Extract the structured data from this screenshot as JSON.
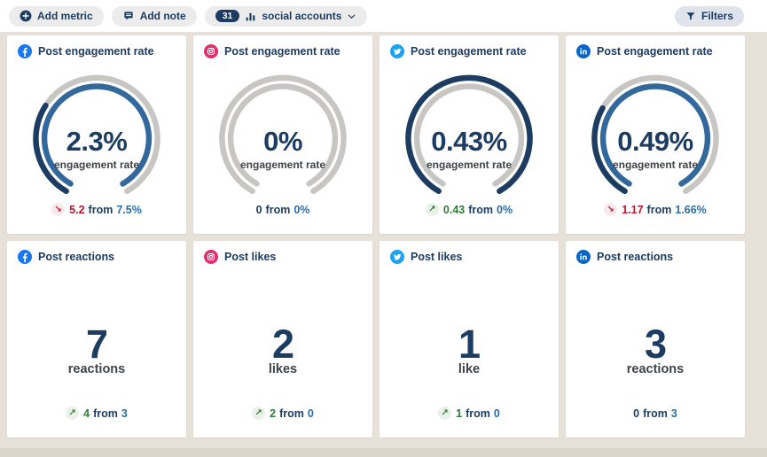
{
  "toolbar": {
    "add_metric_label": "Add metric",
    "add_note_label": "Add note",
    "accounts_count": "31",
    "accounts_label": "social accounts",
    "filters_label": "Filters"
  },
  "colors": {
    "page_bg": "#e6e1d9",
    "navy": "#1d3c61",
    "gauge_current": "#1d3c61",
    "gauge_previous": "#33689c",
    "gauge_track": "#c8c6c3",
    "positive": "#2e7d36",
    "positive_bg": "#eaf1ea",
    "negative": "#c0122f",
    "negative_bg": "#f8e9ec",
    "link_blue": "#2d6ca2",
    "facebook": "#1877f2",
    "instagram": "#e1306c",
    "twitter": "#1da1f2",
    "linkedin": "#0a66c2"
  },
  "trend_arrows": {
    "up": "↗",
    "down": "↘"
  },
  "cards": [
    {
      "network": "facebook",
      "title": "Post engagement rate",
      "type": "gauge",
      "value": "2.3%",
      "value_label": "engagement rate",
      "gauge": {
        "current": "2.3%",
        "previous": "7.5%",
        "current_ratio": 0.31,
        "previous_ratio": 1.0
      },
      "trend": {
        "direction": "down",
        "delta": "5.2",
        "from_word": "from",
        "previous": "7.5%"
      }
    },
    {
      "network": "instagram",
      "title": "Post engagement rate",
      "type": "gauge",
      "value": "0%",
      "value_label": "engagement rate",
      "gauge": {
        "current": "0%",
        "previous": "0%",
        "current_ratio": 0,
        "previous_ratio": 0
      },
      "trend": {
        "direction": "none",
        "delta": "0",
        "from_word": "from",
        "previous": "0%"
      }
    },
    {
      "network": "twitter",
      "title": "Post engagement rate",
      "type": "gauge",
      "value": "0.43%",
      "value_label": "engagement rate",
      "gauge": {
        "current": "0.43%",
        "previous": "0%",
        "current_ratio": 1.0,
        "previous_ratio": 0
      },
      "trend": {
        "direction": "up",
        "delta": "0.43",
        "from_word": "from",
        "previous": "0%"
      }
    },
    {
      "network": "linkedin",
      "title": "Post engagement rate",
      "type": "gauge",
      "value": "0.49%",
      "value_label": "engagement rate",
      "gauge": {
        "current": "0.49%",
        "previous": "1.66%",
        "current_ratio": 0.3,
        "previous_ratio": 1.0
      },
      "trend": {
        "direction": "down",
        "delta": "1.17",
        "from_word": "from",
        "previous": "1.66%"
      }
    },
    {
      "network": "facebook",
      "title": "Post reactions",
      "type": "number",
      "value": "7",
      "value_label": "reactions",
      "trend": {
        "direction": "up",
        "delta": "4",
        "from_word": "from",
        "previous": "3"
      }
    },
    {
      "network": "instagram",
      "title": "Post likes",
      "type": "number",
      "value": "2",
      "value_label": "likes",
      "trend": {
        "direction": "up",
        "delta": "2",
        "from_word": "from",
        "previous": "0"
      }
    },
    {
      "network": "twitter",
      "title": "Post likes",
      "type": "number",
      "value": "1",
      "value_label": "like",
      "trend": {
        "direction": "up",
        "delta": "1",
        "from_word": "from",
        "previous": "0"
      }
    },
    {
      "network": "linkedin",
      "title": "Post reactions",
      "type": "number",
      "value": "3",
      "value_label": "reactions",
      "trend": {
        "direction": "none",
        "delta": "0",
        "from_word": "from",
        "previous": "3"
      }
    }
  ]
}
